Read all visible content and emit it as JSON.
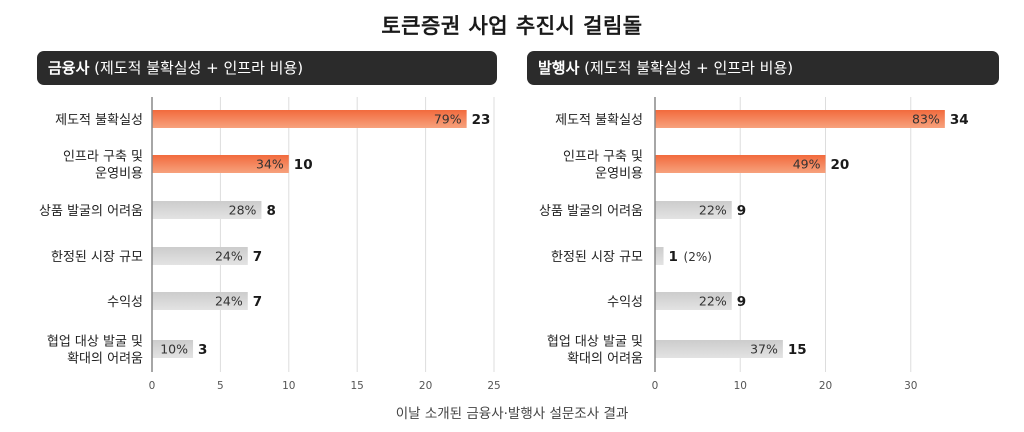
{
  "title": "토큰증권 사업 추진시 걸림돌",
  "source": "이날 소개된 금융사·발행사 설문조사 결과",
  "colors": {
    "highlight_start": "#f26a3d",
    "highlight_end": "#f7a27d",
    "neutral_start": "#cccccc",
    "neutral_end": "#e3e3e3",
    "header_bg": "#2b2b2b",
    "grid": "#dddddd"
  },
  "chart_data": [
    {
      "type": "bar",
      "orientation": "horizontal",
      "header": {
        "bold": "금융사",
        "rest": " (제도적 불확실성 + 인프라 비용)"
      },
      "categories": [
        [
          "제도적 불확실성"
        ],
        [
          "인프라 구축 및",
          "운영비용"
        ],
        [
          "상품 발굴의 어려움"
        ],
        [
          "한정된 시장 규모"
        ],
        [
          "수익성"
        ],
        [
          "협업 대상 발굴 및",
          "확대의 어려움"
        ]
      ],
      "values": [
        23,
        10,
        8,
        7,
        7,
        3
      ],
      "percent_labels": [
        "79%",
        "34%",
        "28%",
        "24%",
        "24%",
        "10%"
      ],
      "value_labels": [
        "23",
        "10",
        "8",
        "7",
        "7",
        "3"
      ],
      "value_suffix": [
        "",
        "",
        "",
        "",
        "",
        ""
      ],
      "highlight": [
        true,
        true,
        false,
        false,
        false,
        false
      ],
      "xlim": [
        0,
        25
      ],
      "xticks": [
        0,
        5,
        10,
        15,
        20,
        25
      ],
      "grid": true
    },
    {
      "type": "bar",
      "orientation": "horizontal",
      "header": {
        "bold": "발행사",
        "rest": " (제도적 불확실성 + 인프라 비용)"
      },
      "categories": [
        [
          "제도적 불확실성"
        ],
        [
          "인프라 구축 및",
          "운영비용"
        ],
        [
          "상품 발굴의 어려움"
        ],
        [
          "한정된 시장 규모"
        ],
        [
          "수익성"
        ],
        [
          "협업 대상 발굴 및",
          "확대의 어려움"
        ]
      ],
      "values": [
        34,
        20,
        9,
        1,
        9,
        15
      ],
      "percent_labels": [
        "83%",
        "49%",
        "22%",
        "",
        "22%",
        "37%"
      ],
      "value_labels": [
        "34",
        "20",
        "9",
        "1",
        "9",
        "15"
      ],
      "value_suffix": [
        "",
        "",
        "",
        "(2%)",
        "",
        ""
      ],
      "highlight": [
        true,
        true,
        false,
        false,
        false,
        false
      ],
      "xlim": [
        0,
        40
      ],
      "xticks": [
        0,
        10,
        20,
        30
      ],
      "grid": true
    }
  ]
}
